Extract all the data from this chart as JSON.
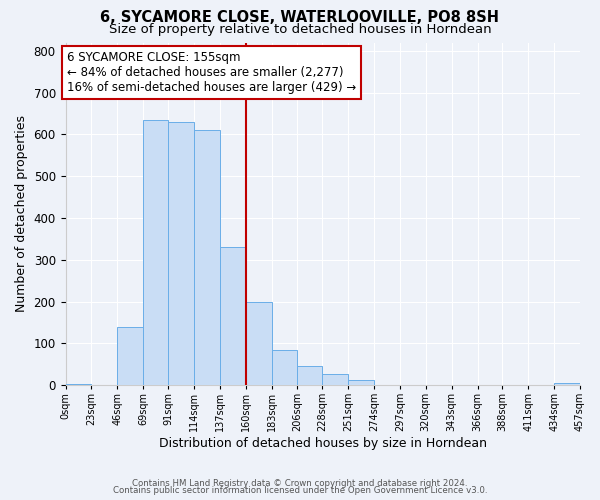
{
  "title": "6, SYCAMORE CLOSE, WATERLOOVILLE, PO8 8SH",
  "subtitle": "Size of property relative to detached houses in Horndean",
  "xlabel": "Distribution of detached houses by size in Horndean",
  "ylabel": "Number of detached properties",
  "bin_edges": [
    0,
    23,
    46,
    69,
    91,
    114,
    137,
    160,
    183,
    206,
    228,
    251,
    274,
    297,
    320,
    343,
    366,
    388,
    411,
    434,
    457
  ],
  "bin_labels": [
    "0sqm",
    "23sqm",
    "46sqm",
    "69sqm",
    "91sqm",
    "114sqm",
    "137sqm",
    "160sqm",
    "183sqm",
    "206sqm",
    "228sqm",
    "251sqm",
    "274sqm",
    "297sqm",
    "320sqm",
    "343sqm",
    "366sqm",
    "388sqm",
    "411sqm",
    "434sqm",
    "457sqm"
  ],
  "bar_heights": [
    3,
    0,
    140,
    635,
    630,
    610,
    330,
    200,
    83,
    45,
    27,
    12,
    0,
    0,
    0,
    0,
    0,
    0,
    0,
    4
  ],
  "bar_color": "#c9ddf5",
  "bar_edge_color": "#6aaee8",
  "vline_x": 160,
  "vline_color": "#c00000",
  "ylim": [
    0,
    820
  ],
  "yticks": [
    0,
    100,
    200,
    300,
    400,
    500,
    600,
    700,
    800
  ],
  "annotation_line1": "6 SYCAMORE CLOSE: 155sqm",
  "annotation_line2": "← 84% of detached houses are smaller (2,277)",
  "annotation_line3": "16% of semi-detached houses are larger (429) →",
  "annotation_box_color": "#c00000",
  "footer1": "Contains HM Land Registry data © Crown copyright and database right 2024.",
  "footer2": "Contains public sector information licensed under the Open Government Licence v3.0.",
  "background_color": "#eef2f9",
  "grid_color": "#ffffff",
  "title_fontsize": 10.5,
  "subtitle_fontsize": 9.5,
  "annotation_fontsize": 8.5
}
